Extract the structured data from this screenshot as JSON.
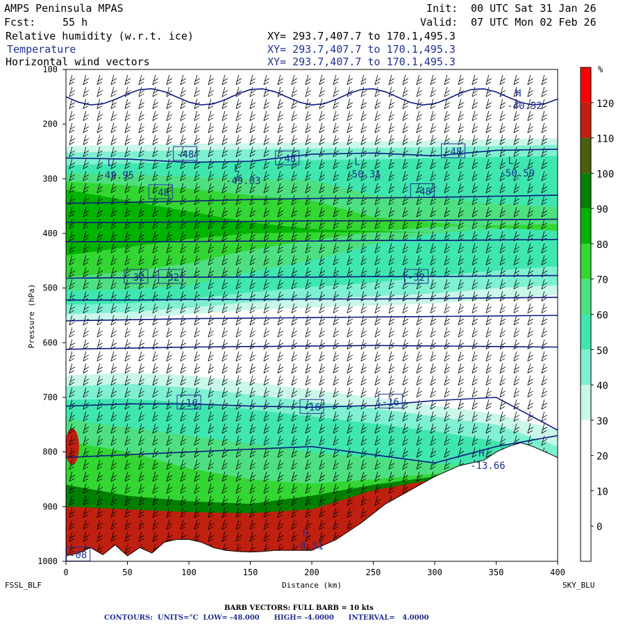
{
  "header": {
    "model": "AMPS Peninsula MPAS",
    "fcst_label": "Fcst:",
    "fcst_hours": "55 h",
    "init_label": "Init:",
    "init_time": "00 UTC Sat 31 Jan 26",
    "valid_label": "Valid:",
    "valid_time": "07 UTC Mon 02 Feb 26",
    "fields": [
      {
        "name": "Relative humidity (w.r.t. ice)",
        "xy": "XY= 293.7,407.7 to 170.1,495.3",
        "color": "#000000"
      },
      {
        "name": "Temperature",
        "xy": "XY= 293.7,407.7 to 170.1,495.3",
        "color": "#1f2f8f"
      },
      {
        "name": "Horizontal wind vectors",
        "xy": "XY= 293.7,407.7 to 170.1,495.3",
        "color": "#000000"
      }
    ]
  },
  "footer": {
    "left_station": "FSSL_BLF",
    "right_station": "SKY_BLU",
    "barb_note": "BARB VECTORS:  FULL BARB = 10 kts",
    "contours_note": "CONTOURS:  UNITS=°C  LOW= -48.000      HIGH= -4.0000      INTERVAL=   4.0000"
  },
  "chart_data": {
    "type": "heatmap",
    "xlabel": "Distance (km)",
    "ylabel": "Pressure (hPa)",
    "xlim": [
      0,
      400
    ],
    "ylim": [
      1000,
      100
    ],
    "x_ticks": [
      0,
      50,
      100,
      150,
      200,
      250,
      300,
      350,
      400
    ],
    "y_ticks": [
      100,
      200,
      300,
      400,
      500,
      600,
      700,
      800,
      900,
      1000
    ],
    "colorbar": {
      "unit": "%",
      "levels": [
        0,
        10,
        20,
        30,
        40,
        50,
        60,
        70,
        80,
        90,
        100,
        110,
        120
      ],
      "colors": [
        "#ffffff",
        "#ffffff",
        "#ffffff",
        "#ffffff",
        "#c9f7ea",
        "#7ff0d2",
        "#40e6b0",
        "#4ee080",
        "#33d633",
        "#00b300",
        "#007f00",
        "#4a5e0c",
        "#c02010",
        "#ff0000"
      ]
    },
    "contour_labels": [
      {
        "text": "-48",
        "x": 97,
        "p": 255
      },
      {
        "text": "-48",
        "x": 180,
        "p": 263
      },
      {
        "text": "-48",
        "x": 315,
        "p": 250
      },
      {
        "text": "-48",
        "x": 77,
        "p": 325
      },
      {
        "text": "-48",
        "x": 290,
        "p": 323
      },
      {
        "text": "-32",
        "x": 57,
        "p": 480
      },
      {
        "text": "-32",
        "x": 85,
        "p": 480
      },
      {
        "text": "-32",
        "x": 285,
        "p": 480
      },
      {
        "text": "-16",
        "x": 100,
        "p": 710
      },
      {
        "text": "-16",
        "x": 200,
        "p": 718
      },
      {
        "text": "-16",
        "x": 264,
        "p": 708
      },
      {
        "text": "-08",
        "x": 10,
        "p": 988
      }
    ],
    "extrema": [
      {
        "kind": "L",
        "value": "-49.95",
        "x": 37,
        "p": 287
      },
      {
        "kind": "L",
        "value": "-49.03",
        "x": 140,
        "p": 297
      },
      {
        "kind": "L",
        "value": "-50.31",
        "x": 238,
        "p": 285
      },
      {
        "kind": "L",
        "value": "-50.59",
        "x": 363,
        "p": 283
      },
      {
        "kind": "H",
        "value": "-40.32",
        "x": 369,
        "p": 160
      },
      {
        "kind": "H",
        "value": "-13.66",
        "x": 339,
        "p": 818
      },
      {
        "kind": "H",
        "value": "-8.51",
        "x": 196,
        "p": 965
      }
    ],
    "temperature_contours": [
      {
        "value": -48,
        "p": [
          262,
          264,
          270,
          268,
          255,
          253,
          258,
          248,
          246
        ]
      },
      {
        "value": -44,
        "p": [
          345,
          343,
          341,
          338,
          336,
          335,
          334,
          332,
          330
        ]
      },
      {
        "value": -40,
        "p": [
          380,
          380,
          379,
          378,
          377,
          377,
          376,
          375,
          374
        ]
      },
      {
        "value": -36,
        "p": [
          415,
          415,
          415,
          414,
          414,
          413,
          413,
          412,
          411
        ]
      },
      {
        "value": -32,
        "p": [
          482,
          481,
          480,
          480,
          480,
          479,
          479,
          478,
          477
        ]
      },
      {
        "value": -28,
        "p": [
          522,
          522,
          521,
          521,
          520,
          520,
          519,
          518,
          517
        ]
      },
      {
        "value": -24,
        "p": [
          560,
          558,
          556,
          555,
          554,
          553,
          552,
          551,
          550
        ]
      },
      {
        "value": -20,
        "p": [
          612,
          610,
          608,
          607,
          606,
          605,
          606,
          607,
          608
        ]
      },
      {
        "value": -16,
        "p": [
          716,
          712,
          712,
          716,
          718,
          715,
          706,
          700,
          760
        ]
      },
      {
        "value": -12,
        "p": [
          810,
          805,
          800,
          795,
          790,
          805,
          820,
          790,
          770
        ]
      }
    ],
    "terrain": {
      "x": [
        0,
        10,
        20,
        30,
        40,
        50,
        60,
        70,
        80,
        90,
        100,
        110,
        120,
        130,
        140,
        150,
        160,
        170,
        180,
        190,
        200,
        210,
        220,
        240,
        260,
        280,
        300,
        320,
        340,
        350,
        360,
        370,
        380,
        390,
        400
      ],
      "p": [
        990,
        985,
        975,
        988,
        970,
        990,
        975,
        985,
        965,
        960,
        960,
        965,
        975,
        980,
        982,
        983,
        982,
        980,
        980,
        980,
        980,
        970,
        960,
        930,
        895,
        870,
        845,
        825,
        815,
        800,
        790,
        783,
        790,
        800,
        810
      ]
    }
  }
}
